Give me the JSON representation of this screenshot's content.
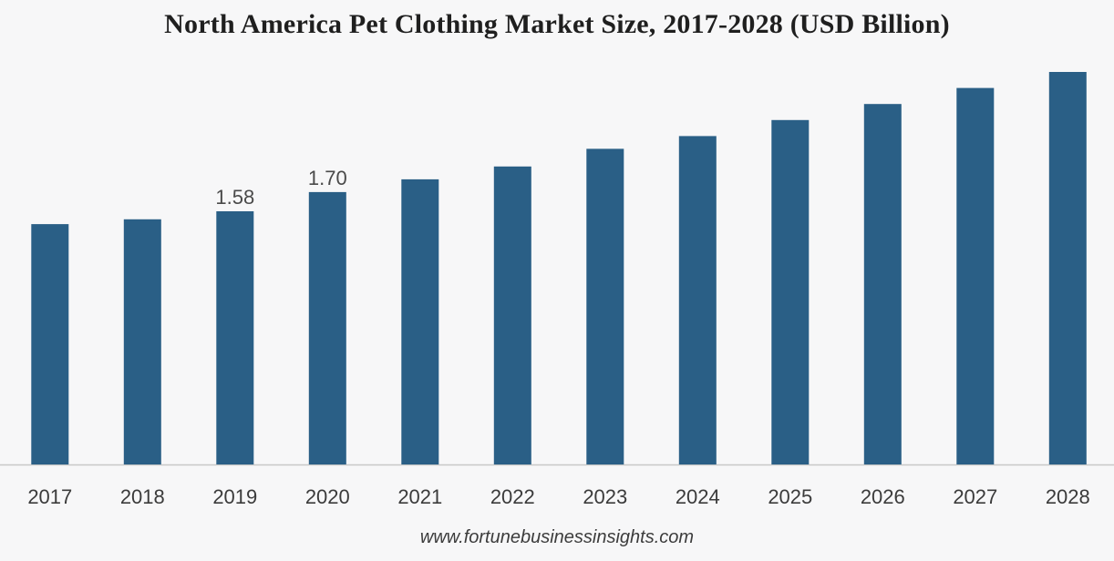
{
  "chart_data": {
    "type": "bar",
    "title": "North America Pet Clothing Market Size, 2017-2028 (USD Billion)",
    "xlabel": "",
    "ylabel": "",
    "categories": [
      "2017",
      "2018",
      "2019",
      "2020",
      "2021",
      "2022",
      "2023",
      "2024",
      "2025",
      "2026",
      "2027",
      "2028"
    ],
    "values": [
      1.5,
      1.53,
      1.58,
      1.7,
      1.78,
      1.86,
      1.97,
      2.05,
      2.15,
      2.25,
      2.35,
      2.45
    ],
    "data_labels": {
      "2019": "1.58",
      "2020": "1.70"
    },
    "ylim": [
      0,
      2.45
    ],
    "grid": false,
    "legend": "none",
    "bar_color": "#2a5f86",
    "axis_color": "#c8c8c8"
  },
  "footer": {
    "source": "www.fortunebusinessinsights.com"
  }
}
